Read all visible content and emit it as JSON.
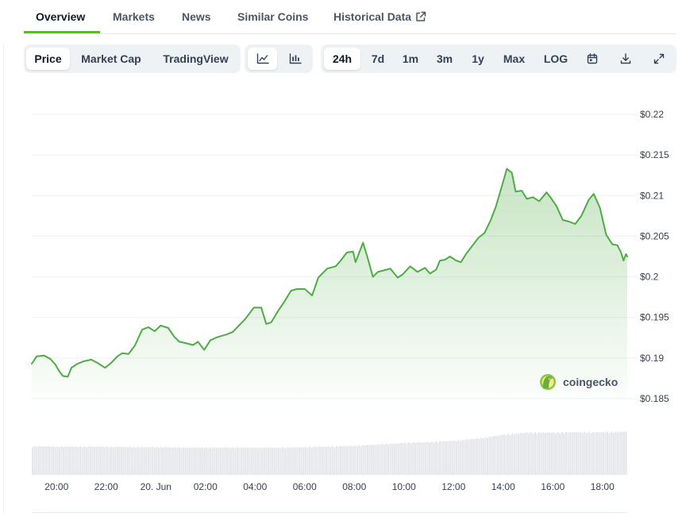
{
  "tabs": [
    {
      "label": "Overview",
      "active": true
    },
    {
      "label": "Markets"
    },
    {
      "label": "News"
    },
    {
      "label": "Similar Coins"
    },
    {
      "label": "Historical Data",
      "icon": "external-link-icon"
    }
  ],
  "toolbar": {
    "metric_options": [
      "Price",
      "Market Cap",
      "TradingView"
    ],
    "metric_selected": "Price",
    "chart_styles": [
      {
        "icon": "line-chart-icon",
        "selected": true
      },
      {
        "icon": "candlestick-chart-icon"
      }
    ],
    "ranges": [
      "24h",
      "7d",
      "1m",
      "3m",
      "1y",
      "Max",
      "LOG"
    ],
    "range_selected": "24h",
    "tools": [
      {
        "icon": "calendar-icon"
      },
      {
        "icon": "download-icon"
      },
      {
        "icon": "expand-icon"
      }
    ]
  },
  "watermark": {
    "text": "coingecko",
    "icon": "coingecko-logo-icon"
  },
  "colors": {
    "line": "#4eac45",
    "accent": "#4bcc00",
    "volume": "#e5e7eb",
    "grid": "#eef0f3"
  },
  "chart_data": {
    "type": "area",
    "y_axis_position": "right",
    "y_tick_labels": [
      "$0.22",
      "$0.215",
      "$0.21",
      "$0.205",
      "$0.2",
      "$0.195",
      "$0.19",
      "$0.185"
    ],
    "y_ticks": [
      0.22,
      0.215,
      0.21,
      0.205,
      0.2,
      0.195,
      0.19,
      0.185
    ],
    "ylim": [
      0.185,
      0.22
    ],
    "x_tick_labels": [
      "20:00",
      "22:00",
      "20. Jun",
      "02:00",
      "04:00",
      "06:00",
      "08:00",
      "10:00",
      "12:00",
      "14:00",
      "16:00",
      "18:00"
    ],
    "x_ticks": [
      20,
      22,
      24,
      26,
      28,
      30,
      32,
      34,
      36,
      38,
      40,
      42
    ],
    "x_unit": "hours since 00:00 on the day before 20 Jun",
    "xlim": [
      19.0,
      43.0
    ],
    "grid": true,
    "price": [
      [
        19.0,
        0.1893
      ],
      [
        19.2,
        0.1902
      ],
      [
        19.5,
        0.1903
      ],
      [
        19.75,
        0.1899
      ],
      [
        19.95,
        0.1892
      ],
      [
        20.1,
        0.1884
      ],
      [
        20.25,
        0.1878
      ],
      [
        20.45,
        0.1877
      ],
      [
        20.6,
        0.1888
      ],
      [
        20.85,
        0.1893
      ],
      [
        21.1,
        0.1896
      ],
      [
        21.4,
        0.1898
      ],
      [
        21.65,
        0.1894
      ],
      [
        21.95,
        0.1888
      ],
      [
        22.2,
        0.1894
      ],
      [
        22.45,
        0.1902
      ],
      [
        22.65,
        0.1906
      ],
      [
        22.9,
        0.1905
      ],
      [
        23.15,
        0.1915
      ],
      [
        23.45,
        0.1935
      ],
      [
        23.7,
        0.1938
      ],
      [
        23.95,
        0.1933
      ],
      [
        24.2,
        0.194
      ],
      [
        24.5,
        0.1937
      ],
      [
        24.75,
        0.1926
      ],
      [
        24.95,
        0.192
      ],
      [
        25.25,
        0.1918
      ],
      [
        25.5,
        0.1916
      ],
      [
        25.7,
        0.192
      ],
      [
        25.95,
        0.191
      ],
      [
        26.2,
        0.1922
      ],
      [
        26.5,
        0.1926
      ],
      [
        26.85,
        0.1929
      ],
      [
        27.1,
        0.1932
      ],
      [
        27.35,
        0.194
      ],
      [
        27.6,
        0.1948
      ],
      [
        27.95,
        0.1962
      ],
      [
        28.25,
        0.1962
      ],
      [
        28.45,
        0.1942
      ],
      [
        28.65,
        0.1944
      ],
      [
        28.95,
        0.1959
      ],
      [
        29.15,
        0.1968
      ],
      [
        29.45,
        0.1983
      ],
      [
        29.7,
        0.1985
      ],
      [
        30.0,
        0.1985
      ],
      [
        30.3,
        0.1977
      ],
      [
        30.55,
        0.1999
      ],
      [
        30.9,
        0.201
      ],
      [
        31.25,
        0.2013
      ],
      [
        31.45,
        0.202
      ],
      [
        31.7,
        0.203
      ],
      [
        31.95,
        0.2031
      ],
      [
        32.05,
        0.2018
      ],
      [
        32.2,
        0.203
      ],
      [
        32.35,
        0.2042
      ],
      [
        32.55,
        0.2022
      ],
      [
        32.75,
        0.2
      ],
      [
        32.95,
        0.2006
      ],
      [
        33.2,
        0.2008
      ],
      [
        33.45,
        0.201
      ],
      [
        33.75,
        0.1999
      ],
      [
        33.95,
        0.2003
      ],
      [
        34.25,
        0.2013
      ],
      [
        34.55,
        0.2006
      ],
      [
        34.85,
        0.2011
      ],
      [
        35.05,
        0.2004
      ],
      [
        35.3,
        0.2009
      ],
      [
        35.45,
        0.202
      ],
      [
        35.65,
        0.2021
      ],
      [
        35.85,
        0.2025
      ],
      [
        36.1,
        0.202
      ],
      [
        36.3,
        0.2018
      ],
      [
        36.5,
        0.2028
      ],
      [
        36.75,
        0.2038
      ],
      [
        37.0,
        0.2048
      ],
      [
        37.25,
        0.2054
      ],
      [
        37.5,
        0.207
      ],
      [
        37.7,
        0.2086
      ],
      [
        37.95,
        0.2112
      ],
      [
        38.15,
        0.2133
      ],
      [
        38.35,
        0.2128
      ],
      [
        38.5,
        0.2105
      ],
      [
        38.75,
        0.2106
      ],
      [
        38.95,
        0.2096
      ],
      [
        39.2,
        0.2098
      ],
      [
        39.45,
        0.2093
      ],
      [
        39.75,
        0.2104
      ],
      [
        39.95,
        0.2096
      ],
      [
        40.15,
        0.2087
      ],
      [
        40.4,
        0.207
      ],
      [
        40.65,
        0.2068
      ],
      [
        40.9,
        0.2065
      ],
      [
        41.15,
        0.2075
      ],
      [
        41.45,
        0.2095
      ],
      [
        41.65,
        0.2102
      ],
      [
        41.9,
        0.2085
      ],
      [
        42.15,
        0.2052
      ],
      [
        42.4,
        0.204
      ],
      [
        42.6,
        0.2039
      ],
      [
        42.75,
        0.203
      ],
      [
        42.85,
        0.202
      ],
      [
        42.95,
        0.2028
      ],
      [
        43.0,
        0.2025
      ]
    ],
    "volume": [
      [
        19.0,
        0.63
      ],
      [
        20.0,
        0.62
      ],
      [
        21.0,
        0.62
      ],
      [
        22.0,
        0.62
      ],
      [
        23.0,
        0.61
      ],
      [
        24.0,
        0.61
      ],
      [
        25.0,
        0.6
      ],
      [
        26.0,
        0.6
      ],
      [
        27.0,
        0.6
      ],
      [
        28.0,
        0.6
      ],
      [
        29.0,
        0.6
      ],
      [
        30.0,
        0.61
      ],
      [
        31.0,
        0.62
      ],
      [
        32.0,
        0.64
      ],
      [
        33.0,
        0.67
      ],
      [
        34.0,
        0.7
      ],
      [
        35.0,
        0.72
      ],
      [
        36.0,
        0.75
      ],
      [
        37.0,
        0.8
      ],
      [
        38.0,
        0.88
      ],
      [
        39.0,
        0.93
      ],
      [
        40.0,
        0.93
      ],
      [
        41.0,
        0.94
      ],
      [
        42.0,
        0.94
      ],
      [
        43.0,
        0.95
      ]
    ]
  }
}
